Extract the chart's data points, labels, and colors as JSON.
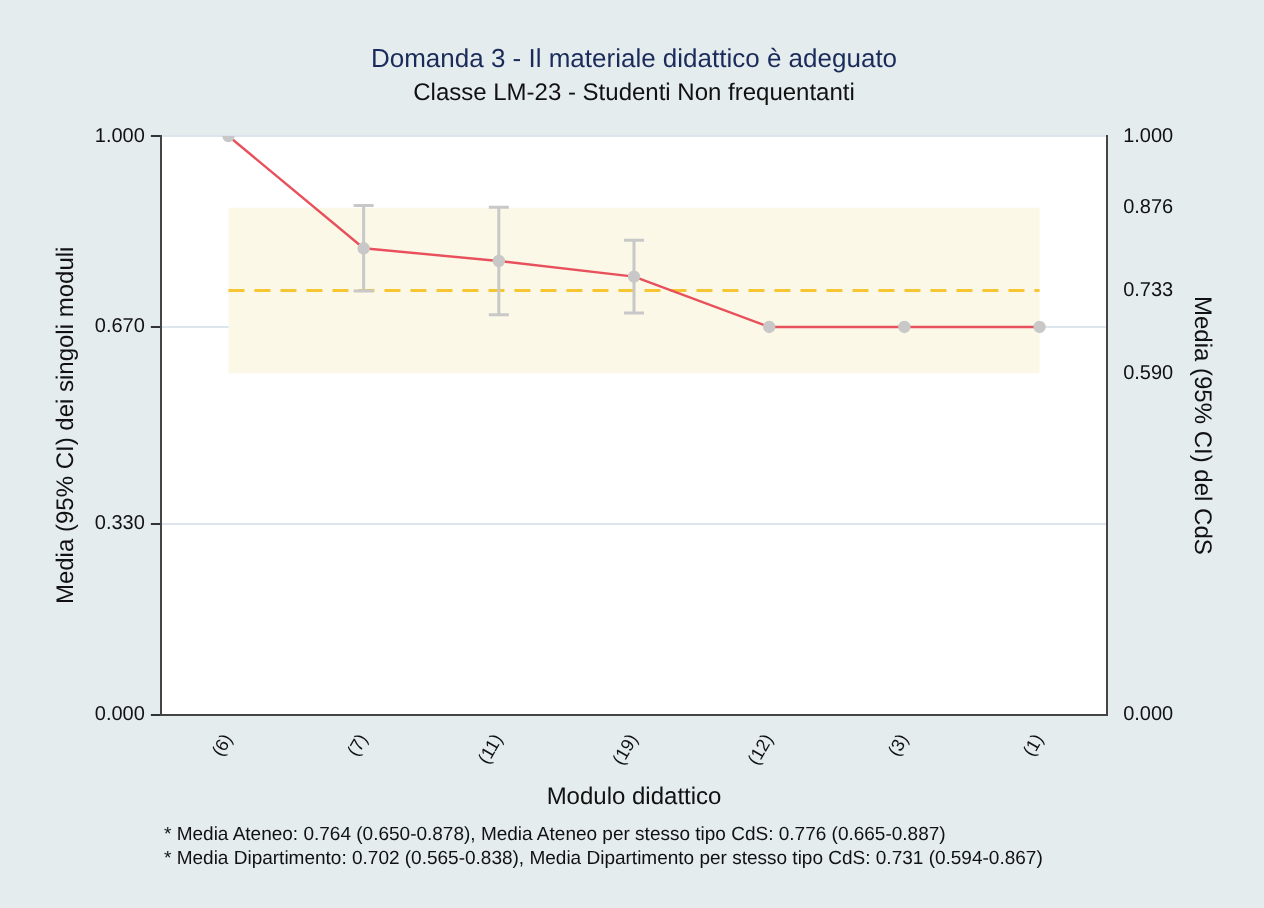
{
  "chart_data": {
    "type": "line",
    "title": "Domanda 3 - Il materiale didattico è adeguato",
    "subtitle": "Classe LM-23 - Studenti Non frequentanti",
    "xlabel": "Modulo didattico",
    "ylabel": "Media (95% CI) dei singoli moduli",
    "y2label": "Media (95% CI) del CdS",
    "categories": [
      "(6)",
      "(7)",
      "(11)",
      "(19)",
      "(12)",
      "(3)",
      "(1)"
    ],
    "series": [
      {
        "color": "#e8505b",
        "values": [
          1.0,
          0.806,
          0.784,
          0.757,
          0.67,
          0.67,
          0.67
        ],
        "errors": [
          null,
          [
            0.732,
            0.88
          ],
          [
            0.691,
            0.877
          ],
          [
            0.694,
            0.82
          ],
          null,
          null,
          null
        ]
      }
    ],
    "ylim": [
      0,
      1
    ],
    "yticks": [
      {
        "value": 0,
        "label": "0.000"
      },
      {
        "value": 0.33,
        "label": "0.330"
      },
      {
        "value": 0.67,
        "label": "0.670"
      },
      {
        "value": 1,
        "label": "1.000"
      }
    ],
    "y2lim": [
      0,
      1
    ],
    "y2ticks": [
      {
        "value": 0,
        "label": "0.000"
      },
      {
        "value": 0.59,
        "label": "0.590"
      },
      {
        "value": 0.733,
        "label": "0.733"
      },
      {
        "value": 0.876,
        "label": "0.876"
      },
      {
        "value": 1,
        "label": "1.000"
      }
    ],
    "bands": [
      {
        "axis": "y2",
        "from": 0.59,
        "to": 0.876,
        "color": "#fbf8e8"
      }
    ],
    "ref_lines": [
      {
        "axis": "y2",
        "value": 0.733,
        "color": "#f7c531",
        "line_style": "dashed"
      }
    ],
    "grid": "y",
    "marker": "circle",
    "legend": false,
    "annotations": [
      "* Media Ateneo: 0.764 (0.650-0.878),  Media Ateneo per stesso tipo CdS: 0.776 (0.665-0.887)",
      "* Media Dipartimento: 0.702 (0.565-0.838), Media Dipartimento per stesso tipo CdS: 0.731 (0.594-0.867)"
    ]
  }
}
